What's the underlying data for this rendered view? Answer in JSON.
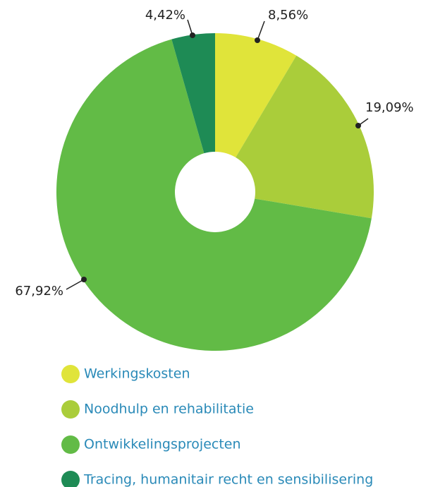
{
  "chart_data": {
    "type": "donut",
    "categories": [
      "Werkingskosten",
      "Noodhulp en rehabilitatie",
      "Ontwikkelingsprojecten",
      "Tracing, humanitair recht en sensibilisering"
    ],
    "values": [
      8.56,
      19.09,
      67.92,
      4.42
    ],
    "value_labels": [
      "8,56%",
      "19,09%",
      "67,92%",
      "4,42%"
    ],
    "colors": [
      "#e0e43a",
      "#aacd3a",
      "#62bb46",
      "#1e8b55"
    ]
  }
}
